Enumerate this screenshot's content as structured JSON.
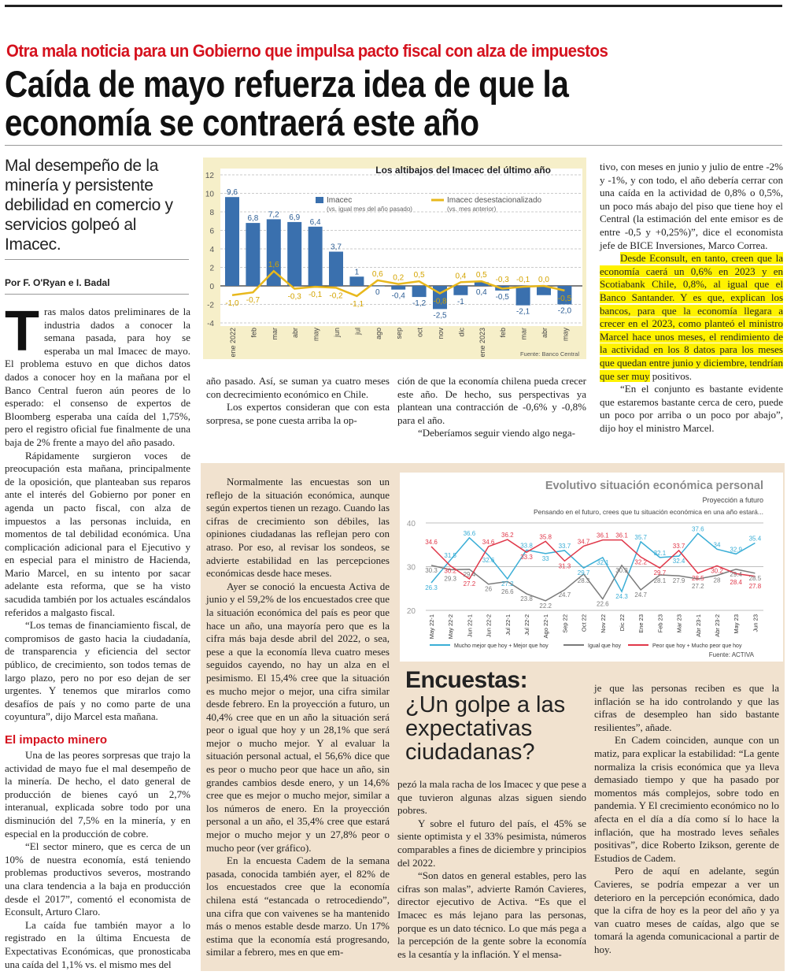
{
  "kicker": "Otra mala noticia para un Gobierno que impulsa pacto fiscal con alza de impuestos",
  "headline": [
    "Caída de mayo refuerza idea de que la",
    "economía se contraerá este año"
  ],
  "deck": "Mal desempeño de la minería y persistente debilidad en comercio y servicios golpeó al Imacec.",
  "byline": "Por F. O'Ryan e I. Badal",
  "left": {
    "dropcap": "T",
    "p1": "ras malos datos preliminares de la industria dados a conocer la semana pasada, para hoy se esperaba un mal Imacec de mayo. El problema estuvo en que dichos datos dados a conocer hoy en la mañana por el Banco Central fueron aún peores de lo esperado: el consenso de expertos de Bloomberg esperaba una caída del 1,75%, pero el registro oficial fue finalmente de una baja de 2% frente a mayo del año pasado.",
    "p2": "Rápidamente surgieron voces de preocupación esta mañana, principalmente de la oposición, que planteaban sus reparos ante el interés del Gobierno por poner en agenda un pacto fiscal, con alza de impuestos a las personas incluida, en momentos de tal debilidad económica. Una complicación adicional para el Ejecutivo y en especial para el ministro de Hacienda, Mario Marcel, en su intento por sacar adelante esta reforma, que se ha visto sacudida también por los actuales escándalos referidos a malgasto fiscal.",
    "p3": "“Los temas de financiamiento fiscal, de compromisos de gasto hacia la ciudadanía, de transparencia y eficiencia del sector público, de crecimiento, son todos temas de largo plazo, pero no por eso dejan de ser urgentes. Y tenemos que mirarlos como desafíos de país y no como parte de una coyuntura”, dijo Marcel esta mañana.",
    "subhead": "El impacto minero",
    "p4": "Una de las peores sorpresas que trajo la actividad de mayo fue el mal desempeño de la minería. De hecho, el dato general de producción de bienes cayó un 2,7% interanual, explicada sobre todo por una disminución del 7,5% en la minería, y en especial en la producción de cobre.",
    "p5": "“El sector minero, que es cerca de un 10% de nuestra economía, está teniendo problemas productivos severos, mostrando una clara tendencia a la baja en producción desde el 2017”, comentó el economista de Econsult, Arturo Claro.",
    "p6": "La caída fue también mayor a lo registrado en la última Encuesta de Expectativas Económicas, que pronosticaba una caída del 1,1% vs. el mismo mes del"
  },
  "mid_a": {
    "p1": "año pasado. Así, se suman ya cuatro meses con decrecimiento económico en Chile.",
    "p2": "Los expertos consideran que con esta sorpresa, se pone cuesta arriba la op-"
  },
  "mid_b": {
    "p1": "ción de que la economía chilena pueda crecer este año. De hecho, sus perspectivas ya plantean una contracción de -0,6% y -0,8% para el año.",
    "p2": "“Deberíamos seguir viendo algo nega-"
  },
  "right": {
    "p1": "tivo, con meses en junio y julio de entre -2% y -1%, y con todo, el año debería cerrar con una caída en la actividad de 0,8% o 0,5%, un poco más abajo del piso que tiene hoy el Central (la estimación del ente emisor es de entre -0,5 y +0,25%)”, dice el economista jefe de BICE Inversiones, Marco Correa.",
    "p2_highlight": "Desde Econsult, en tanto, creen que la economía caerá un 0,6% en 2023 y en Scotiabank Chile, 0,8%, al igual que el Banco Santander. Y es que, explican los bancos, para que la economía llegara a crecer en el 2023, como planteó el ministro Marcel hace unos meses, el rendimiento de la actividad en los 8 datos para los meses que quedan entre junio y diciembre, tendrían que ser muy",
    "p2_rest": " positivos.",
    "p3": "“En el conjunto es bastante evidente que estaremos bastante cerca de cero, puede un poco por arriba o un poco por abajo”, dijo hoy el ministro Marcel."
  },
  "box": {
    "col1": [
      "Normalmente las encuestas son un reflejo de la situación económica, aunque según expertos tienen un rezago. Cuando las cifras de crecimiento son débiles, las opiniones ciudadanas las reflejan pero con atraso. Por eso, al revisar los sondeos, se advierte estabilidad en las percepciones económicas desde hace meses.",
      "Ayer se conoció la encuesta Activa de junio y el 59,2% de los encuestados cree que la situación económica del país es peor que hace un año, una mayoría pero que es la cifra más baja desde abril del 2022, o sea, pese a que la economía lleva cuatro meses seguidos cayendo, no hay un alza en el pesimismo. El 15,4% cree que la situación es mucho mejor o mejor, una cifra similar desde febrero. En la proyección a futuro, un 40,4% cree que en un año la situación será peor o igual que hoy y un 28,1% que será mejor o mucho mejor. Y al evaluar la situación personal actual, el 56,6% dice que es peor o mucho peor que hace un año, sin grandes cambios desde enero, y un 14,6% cree que es mejor o mucho mejor, similar a los números de enero. En la proyección personal a un año, el 35,4% cree que estará mejor o mucho mejor y un 27,8% peor o mucho peor (ver gráfico).",
      "En la encuesta Cadem de la semana pasada, conocida también ayer, el 82% de los encuestados cree que la economía chilena está “estancada o retrocediendo”, una cifra que con vaivenes se ha mantenido más o menos estable desde marzo. Un 17% estima que la economía está progresando, similar a febrero, mes en que em-"
    ],
    "title_bold": "Encuestas:",
    "title_light": "¿Un golpe a las expectativas ciudadanas?",
    "col2": [
      "pezó la mala racha de los Imacec y que pese a que tuvieron algunas alzas siguen siendo pobres.",
      "Y sobre el futuro del país, el 45% se siente optimista y el 33% pesimista, números comparables a fines de diciembre y principios del 2022.",
      "“Son datos en general estables, pero las cifras son malas”, advierte Ramón Cavieres, director ejecutivo de Activa. “Es que el Imacec es más lejano para las personas, porque es un dato técnico. Lo que más pega a la percepción de la gente sobre la economía es la cesantía y la inflación. Y el mensa-"
    ],
    "col3": [
      "je que las personas reciben es que la inflación se ha ido controlando y que las cifras de desempleo han sido bastante resilientes”, añade.",
      "En Cadem coinciden, aunque con un matiz, para explicar la estabilidad: “La gente normaliza la crisis económica que ya lleva demasiado tiempo y que ha pasado por momentos más complejos, sobre todo en pandemia. Y El crecimiento económico no lo afecta en el día a día como sí lo hace la inflación, que ha mostrado leves señales positivas”, dice Roberto Izikson, gerente de Estudios de Cadem.",
      "Pero de aquí en adelante, según Cavieres, se podría empezar a ver un deterioro en la percepción económica, dado que la cifra de hoy es la peor del año y ya van cuatro meses de caídas, algo que se tomará la agenda comunicacional a partir de hoy."
    ]
  },
  "chart_data": [
    {
      "type": "bar",
      "title": "Los altibajos del Imacec del último año",
      "categories": [
        "ene 2022",
        "feb",
        "mar",
        "abr",
        "may",
        "jun",
        "jul",
        "ago",
        "sep",
        "oct",
        "nov",
        "dic",
        "ene 2023",
        "feb",
        "mar",
        "abr",
        "may"
      ],
      "series": [
        {
          "name": "Imacec",
          "subtitle": "(vs. igual mes del año pasado)",
          "kind": "bar",
          "color": "#3a70ae",
          "values": [
            9.6,
            6.8,
            7.2,
            6.9,
            6.4,
            3.7,
            1,
            0,
            -0.4,
            -1.2,
            -2.5,
            -1,
            0.4,
            -0.5,
            -2.1,
            -1.0,
            -2.0
          ],
          "labels": [
            "9,6",
            "6,8",
            "7,2",
            "6,9",
            "6,4",
            "3,7",
            "1",
            "0",
            "-0,4",
            "-1,2",
            "-2,5",
            "-1",
            "0,4",
            "-0,5",
            "-2,1",
            "",
            "-2,0"
          ]
        },
        {
          "name": "Imacec desestacionalizado",
          "subtitle": "(vs. mes anterior)",
          "kind": "line",
          "color": "#e8b81c",
          "values": [
            -1.0,
            -0.7,
            1.6,
            -0.3,
            -0.1,
            -0.2,
            -1.1,
            0.6,
            0.2,
            0.5,
            -0.8,
            0.4,
            0.5,
            -0.3,
            -0.1,
            0.0,
            -0.5
          ],
          "labels": [
            "-1,0",
            "-0,7",
            "1,6",
            "-0,3",
            "-0,1",
            "-0,2",
            "-1,1",
            "0,6",
            "0,2",
            "0,5",
            "-0,8",
            "0,4",
            "0,5",
            "-0,3",
            "-0,1",
            "0,0",
            "-0,5"
          ]
        }
      ],
      "ylim": [
        -4,
        12
      ],
      "yticks": [
        "12",
        "10",
        "8",
        "6",
        "4",
        "2",
        "0",
        "-2",
        "-4"
      ],
      "source": "Fuente: Banco Central",
      "grid": true
    },
    {
      "type": "line",
      "title": "Evolutivo situación económica personal",
      "subtitle": "Proyección a futuro",
      "question": "Pensando en el futuro, crees que tu situación económica en una año estará...",
      "categories": [
        "May 22-1",
        "May 22-2",
        "Jun 22-1",
        "Jun 22-2",
        "Jul 22-1",
        "Jul 22-2",
        "Ago 22-1",
        "Sep 22",
        "Oct 22",
        "Nov 22",
        "Dic 22",
        "Ene 23",
        "Feb 23",
        "Mar 23",
        "Abr 23-1",
        "Abr 23-2",
        "May 23",
        "Jun 23"
      ],
      "series": [
        {
          "name": "Mucho mejor que hoy + Mejor que hoy",
          "color": "#3aaed6",
          "values": [
            26.3,
            31.5,
            36.6,
            32.6,
            27.2,
            33.8,
            33,
            33.7,
            29.7,
            32.1,
            24.3,
            35.7,
            32.1,
            32.4,
            37.6,
            34,
            32.9,
            35.4
          ]
        },
        {
          "name": "Igual que hoy",
          "color": "#7a7a7a",
          "values": [
            30.3,
            29.3,
            29.4,
            26,
            26.6,
            23.8,
            22.2,
            24.7,
            28.3,
            22.6,
            30.3,
            24.7,
            28.1,
            27.9,
            27.2,
            28,
            29.4,
            28.5
          ]
        },
        {
          "name": "Peor que hoy + Mucho peor que hoy",
          "color": "#e0384a",
          "values": [
            34.6,
            30.2,
            27.2,
            34.6,
            36.2,
            33.3,
            35.8,
            31.3,
            34.7,
            36.1,
            36.1,
            32.2,
            29.7,
            33.7,
            28.5,
            30.2,
            28.4,
            27.8
          ]
        }
      ],
      "ylim": [
        20,
        40
      ],
      "yticks": [
        "40",
        "30",
        "20"
      ],
      "source": "Fuente: ACTIVA",
      "legend": "bottom",
      "grid": true
    }
  ]
}
